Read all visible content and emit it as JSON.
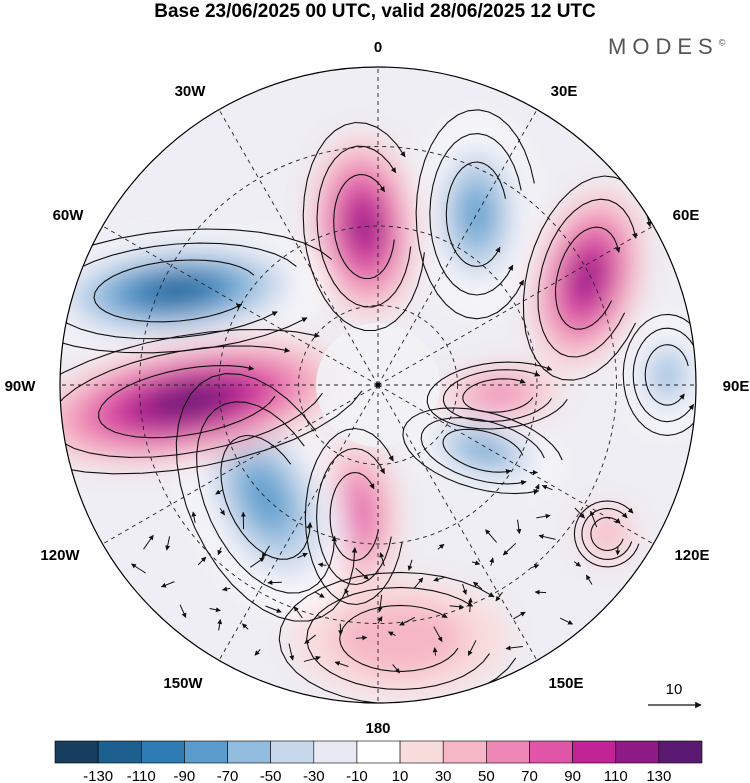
{
  "title": "Base 23/06/2025 00 UTC, valid 28/06/2025 12 UTC",
  "brand": "MODES",
  "brand_mark": "©",
  "longitude_labels": {
    "lon_0": "0",
    "lon_30e": "30E",
    "lon_60e": "60E",
    "lon_90e": "90E",
    "lon_120e": "120E",
    "lon_150e": "150E",
    "lon_180": "180",
    "lon_150w": "150W",
    "lon_120w": "120W",
    "lon_90w": "90W",
    "lon_60w": "60W",
    "lon_30w": "30W"
  },
  "vector_reference": "10",
  "colorbar": {
    "colors": [
      "#173e5c",
      "#1d5f8f",
      "#2e7cb5",
      "#5b9ccc",
      "#93bddf",
      "#c8d8ec",
      "#e9e9f3",
      "#ffffff",
      "#f9dcdc",
      "#f5b6c5",
      "#ee87b6",
      "#e055a8",
      "#c32495",
      "#8e1a86",
      "#5a1a72"
    ],
    "ticks": [
      "-130",
      "-110",
      "-90",
      "-70",
      "-50",
      "-30",
      "-10",
      "10",
      "30",
      "50",
      "70",
      "90",
      "110",
      "130"
    ]
  },
  "anomaly_cells": [
    {
      "name": "pos-north-atlantic",
      "lon": -5,
      "colat": 0.5,
      "rx": 55,
      "ry": 95,
      "rot": -5,
      "value": 110
    },
    {
      "name": "neg-scandinavia",
      "lon": 30,
      "colat": 0.62,
      "rx": 55,
      "ry": 95,
      "rot": 0,
      "value": -90
    },
    {
      "name": "pos-west-siberia",
      "lon": 63,
      "colat": 0.74,
      "rx": 55,
      "ry": 95,
      "rot": 15,
      "value": 110
    },
    {
      "name": "neg-east-siberia",
      "lon": 88,
      "colat": 0.91,
      "rx": 40,
      "ry": 55,
      "rot": 0,
      "value": -70
    },
    {
      "name": "pos-siberia-small",
      "lon": 95,
      "colat": 0.38,
      "rx": 65,
      "ry": 30,
      "rot": -5,
      "value": 50
    },
    {
      "name": "pos-far-east",
      "lon": 123,
      "colat": 0.86,
      "rx": 30,
      "ry": 30,
      "rot": 0,
      "value": 30
    },
    {
      "name": "neg-bering",
      "lon": 122,
      "colat": 0.39,
      "rx": 75,
      "ry": 35,
      "rot": 15,
      "value": -90
    },
    {
      "name": "pos-pacific",
      "lon": -170,
      "colat": 0.42,
      "rx": 45,
      "ry": 80,
      "rot": 0,
      "value": 70
    },
    {
      "name": "pos-north-pacific",
      "lon": 175,
      "colat": 0.8,
      "rx": 110,
      "ry": 60,
      "rot": 0,
      "value": 30
    },
    {
      "name": "neg-alaska",
      "lon": -135,
      "colat": 0.5,
      "rx": 70,
      "ry": 120,
      "rot": -25,
      "value": -90
    },
    {
      "name": "pos-canada",
      "lon": -95,
      "colat": 0.6,
      "rx": 165,
      "ry": 60,
      "rot": -10,
      "value": 130
    },
    {
      "name": "neg-greenland-canada",
      "lon": -65,
      "colat": 0.7,
      "rx": 150,
      "ry": 55,
      "rot": -5,
      "value": -130
    }
  ]
}
